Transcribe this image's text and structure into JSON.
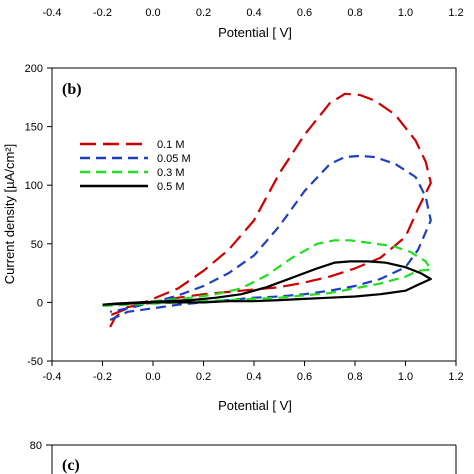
{
  "top_strip": {
    "x_ticks": [
      "-0.4",
      "-0.2",
      "0.0",
      "0.2",
      "0.4",
      "0.6",
      "0.8",
      "1.0",
      "1.2"
    ],
    "xlabel": "Potential [ V]"
  },
  "chart_data": {
    "type": "line",
    "panel_label": "(b)",
    "title": "",
    "xlabel": "Potential [ V]",
    "ylabel": "Current density [µA/cm²]",
    "xlim": [
      -0.4,
      1.2
    ],
    "ylim": [
      -50,
      200
    ],
    "x_ticks": [
      "-0.4",
      "-0.2",
      "0.0",
      "0.2",
      "0.4",
      "0.6",
      "0.8",
      "1.0",
      "1.2"
    ],
    "y_ticks": [
      "-50",
      "0",
      "50",
      "100",
      "150",
      "200"
    ],
    "grid": false,
    "legend_position": "upper-left",
    "series": [
      {
        "name": "0.1 M",
        "color": "#cc0000",
        "dash": "long-dash",
        "points": [
          [
            -0.17,
            -21
          ],
          [
            -0.15,
            -13
          ],
          [
            -0.1,
            -4
          ],
          [
            0.0,
            0
          ],
          [
            0.1,
            4
          ],
          [
            0.2,
            7
          ],
          [
            0.3,
            9
          ],
          [
            0.4,
            11
          ],
          [
            0.5,
            13
          ],
          [
            0.6,
            17
          ],
          [
            0.7,
            22
          ],
          [
            0.8,
            29
          ],
          [
            0.9,
            38
          ],
          [
            0.95,
            47
          ],
          [
            1.0,
            56
          ],
          [
            1.05,
            80
          ],
          [
            1.1,
            102
          ],
          [
            1.08,
            120
          ],
          [
            1.04,
            138
          ],
          [
            0.96,
            160
          ],
          [
            0.88,
            172
          ],
          [
            0.82,
            177
          ],
          [
            0.76,
            178
          ],
          [
            0.7,
            170
          ],
          [
            0.6,
            143
          ],
          [
            0.5,
            110
          ],
          [
            0.4,
            70
          ],
          [
            0.3,
            45
          ],
          [
            0.2,
            27
          ],
          [
            0.1,
            12
          ],
          [
            0.0,
            3
          ],
          [
            -0.1,
            -5
          ],
          [
            -0.17,
            -11
          ]
        ]
      },
      {
        "name": "0.05 M",
        "color": "#1f3fbf",
        "dash": "dash",
        "points": [
          [
            -0.17,
            -15
          ],
          [
            -0.1,
            -8
          ],
          [
            0.0,
            -5
          ],
          [
            0.1,
            -2
          ],
          [
            0.2,
            0
          ],
          [
            0.3,
            2
          ],
          [
            0.4,
            4
          ],
          [
            0.5,
            5
          ],
          [
            0.6,
            7
          ],
          [
            0.7,
            10
          ],
          [
            0.8,
            14
          ],
          [
            0.9,
            20
          ],
          [
            1.0,
            30
          ],
          [
            1.05,
            45
          ],
          [
            1.1,
            70
          ],
          [
            1.08,
            90
          ],
          [
            1.04,
            107
          ],
          [
            0.96,
            118
          ],
          [
            0.88,
            124
          ],
          [
            0.82,
            125
          ],
          [
            0.76,
            124
          ],
          [
            0.7,
            118
          ],
          [
            0.6,
            95
          ],
          [
            0.5,
            65
          ],
          [
            0.4,
            40
          ],
          [
            0.3,
            25
          ],
          [
            0.2,
            14
          ],
          [
            0.1,
            6
          ],
          [
            0.0,
            0
          ],
          [
            -0.1,
            -5
          ],
          [
            -0.17,
            -8
          ]
        ]
      },
      {
        "name": "0.3 M",
        "color": "#22dd22",
        "dash": "dash",
        "points": [
          [
            -0.2,
            -3
          ],
          [
            -0.1,
            -2
          ],
          [
            0.0,
            -1
          ],
          [
            0.1,
            0
          ],
          [
            0.2,
            1
          ],
          [
            0.3,
            2
          ],
          [
            0.4,
            3
          ],
          [
            0.5,
            4
          ],
          [
            0.6,
            6
          ],
          [
            0.7,
            8
          ],
          [
            0.8,
            12
          ],
          [
            0.9,
            16
          ],
          [
            1.0,
            22
          ],
          [
            1.05,
            27
          ],
          [
            1.1,
            28
          ],
          [
            1.08,
            35
          ],
          [
            1.02,
            43
          ],
          [
            0.95,
            48
          ],
          [
            0.85,
            51
          ],
          [
            0.78,
            53
          ],
          [
            0.72,
            53
          ],
          [
            0.65,
            50
          ],
          [
            0.55,
            38
          ],
          [
            0.45,
            23
          ],
          [
            0.35,
            12
          ],
          [
            0.25,
            7
          ],
          [
            0.15,
            4
          ],
          [
            0.05,
            2
          ],
          [
            -0.05,
            0
          ],
          [
            -0.15,
            -2
          ],
          [
            -0.2,
            -3
          ]
        ]
      },
      {
        "name": "0.5 M",
        "color": "#000000",
        "dash": "solid",
        "points": [
          [
            -0.2,
            -2
          ],
          [
            -0.1,
            -1
          ],
          [
            0.0,
            0
          ],
          [
            0.1,
            0
          ],
          [
            0.2,
            0
          ],
          [
            0.3,
            1
          ],
          [
            0.4,
            1
          ],
          [
            0.5,
            2
          ],
          [
            0.6,
            3
          ],
          [
            0.7,
            4
          ],
          [
            0.8,
            5
          ],
          [
            0.9,
            7
          ],
          [
            1.0,
            10
          ],
          [
            1.05,
            15
          ],
          [
            1.1,
            20
          ],
          [
            1.06,
            25
          ],
          [
            1.0,
            30
          ],
          [
            0.92,
            34
          ],
          [
            0.85,
            35
          ],
          [
            0.78,
            35
          ],
          [
            0.72,
            34
          ],
          [
            0.65,
            29
          ],
          [
            0.55,
            21
          ],
          [
            0.45,
            13
          ],
          [
            0.35,
            7
          ],
          [
            0.25,
            4
          ],
          [
            0.15,
            2
          ],
          [
            0.05,
            1
          ],
          [
            -0.05,
            0
          ],
          [
            -0.15,
            -1
          ],
          [
            -0.2,
            -2
          ]
        ]
      }
    ]
  },
  "bottom_strip": {
    "panel_label": "(c)",
    "y_ticks": [
      "80"
    ]
  }
}
